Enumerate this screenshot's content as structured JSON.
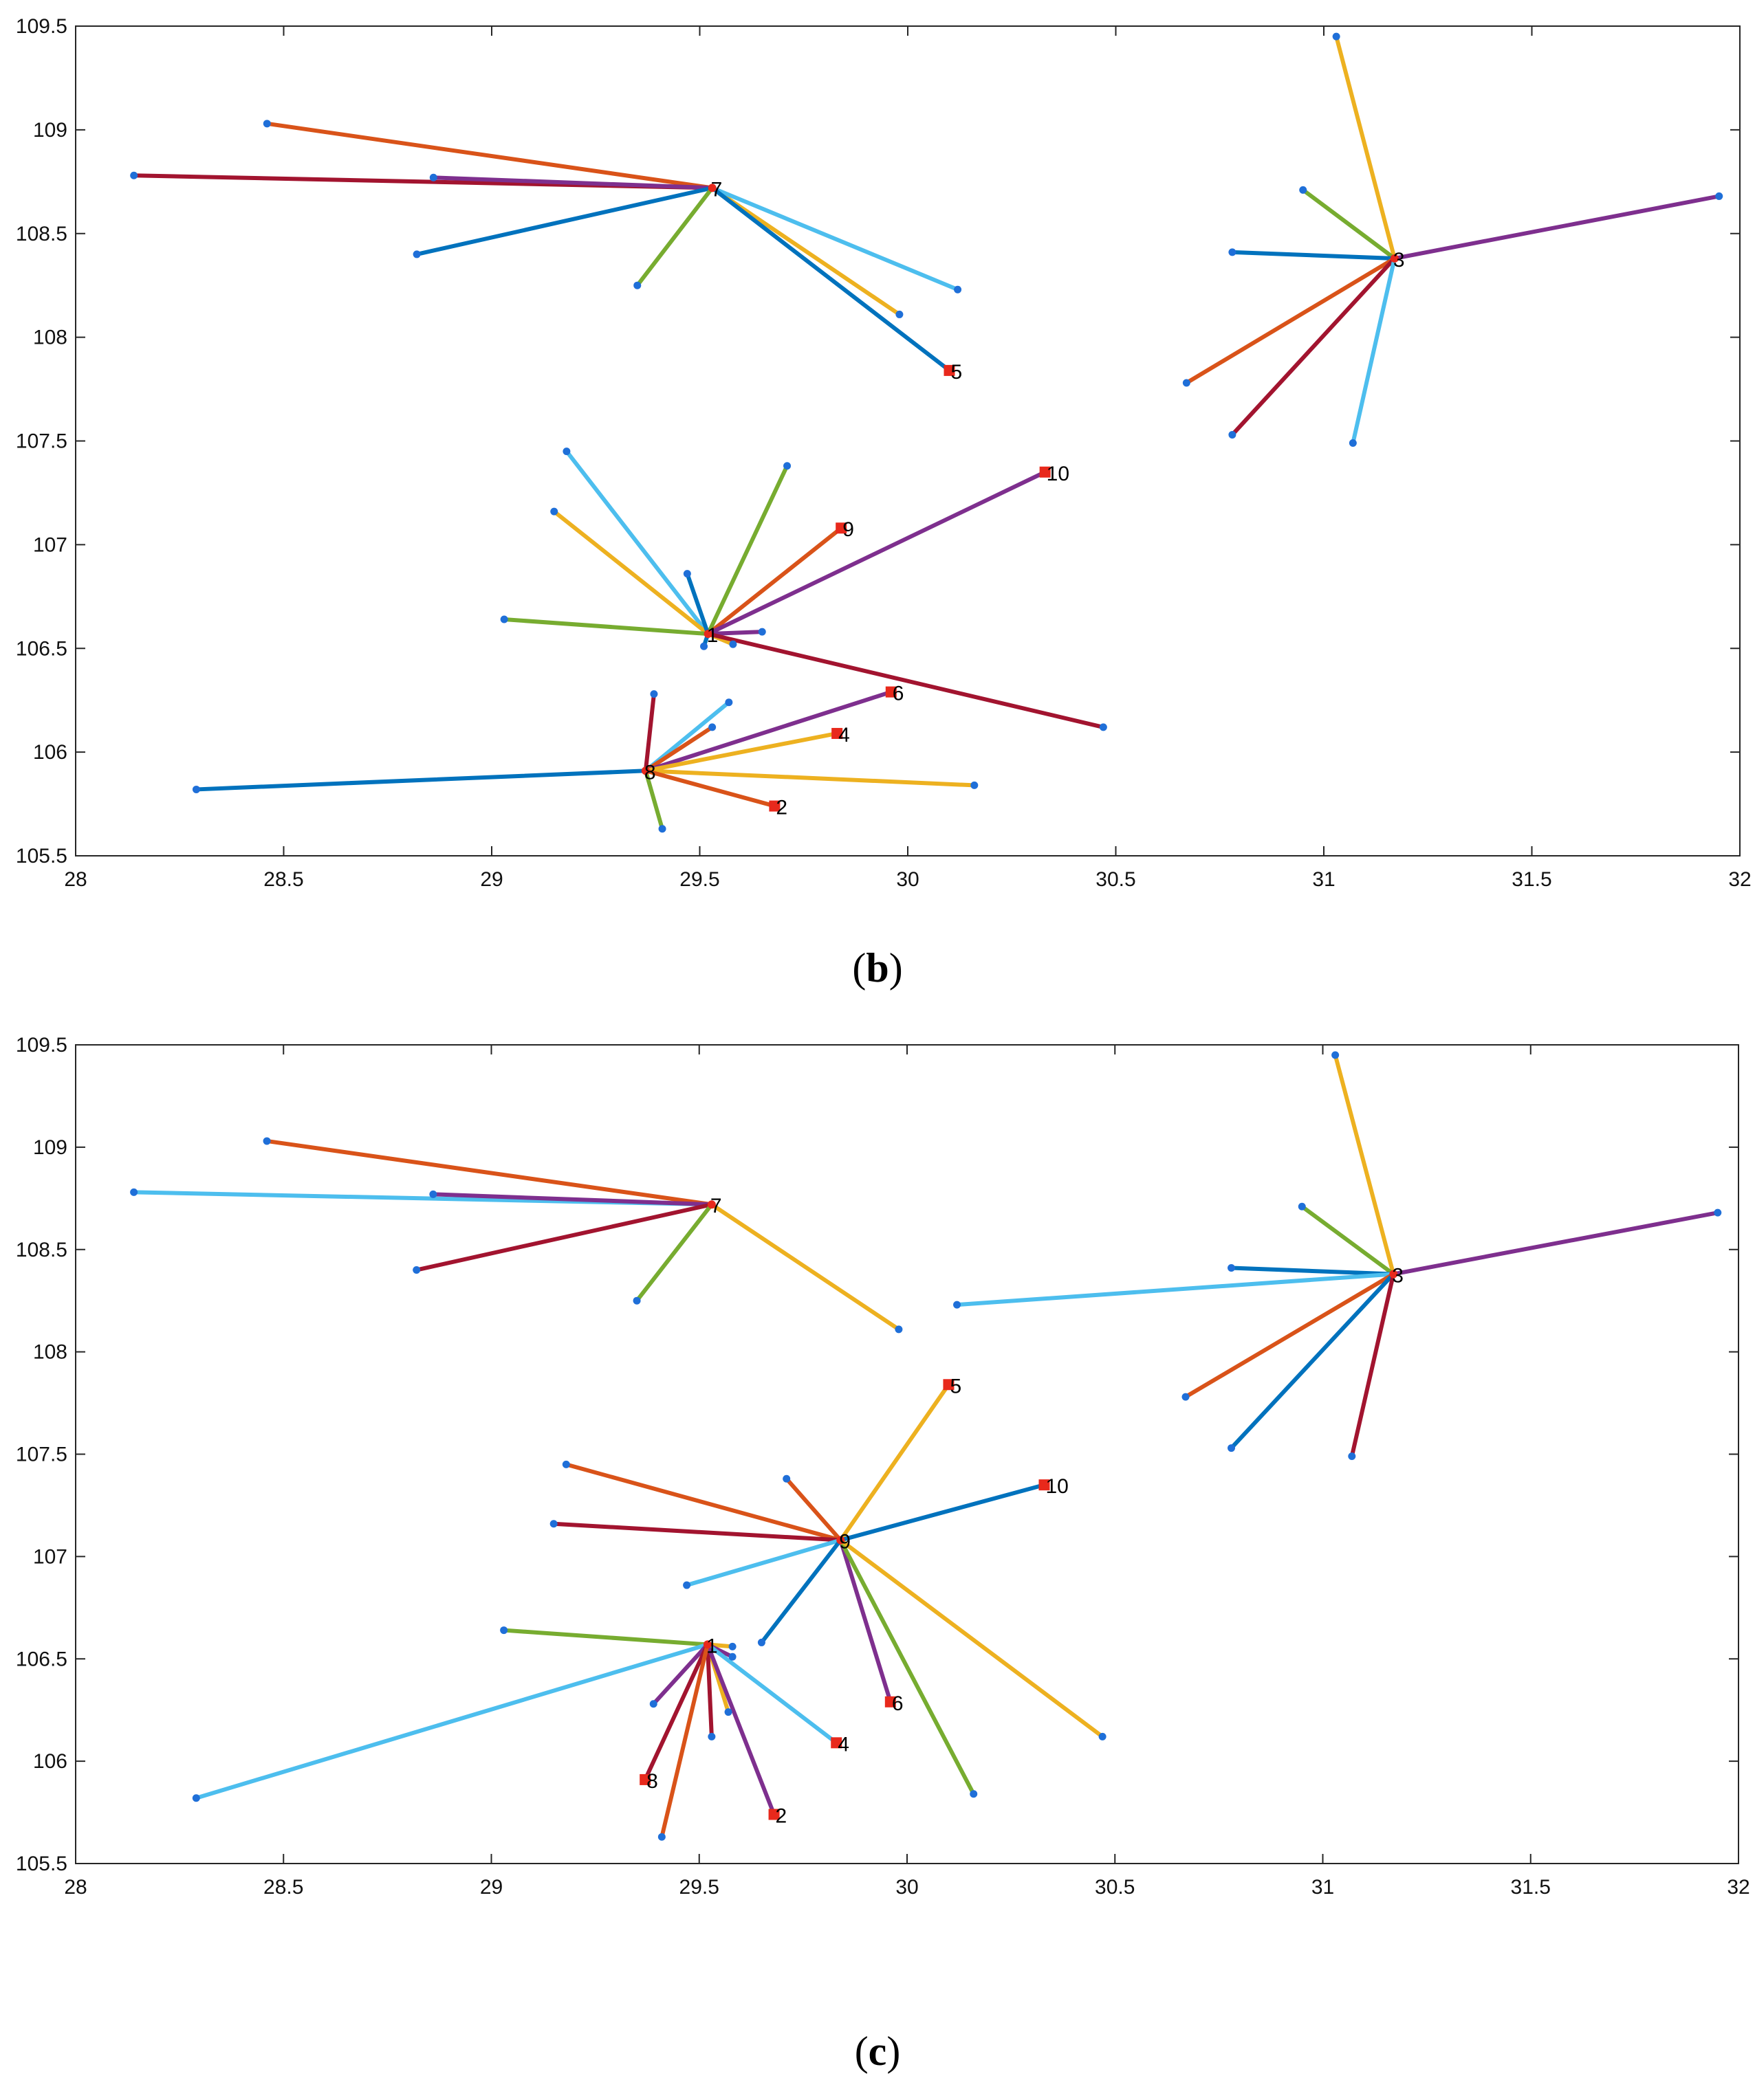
{
  "colors": {
    "blue": "#0072BD",
    "orange": "#D95319",
    "yellow": "#EDB120",
    "purple": "#7E2F8E",
    "green": "#77AC30",
    "cyan": "#4DBEEE",
    "maroon": "#A2142F",
    "marker_red": "#E8291C",
    "dot_blue": "#1F6FD8"
  },
  "chart_data": [
    {
      "type": "scatter",
      "panel_id": "b",
      "caption": {
        "open": "(",
        "letter": "b",
        "close": ")"
      },
      "title": "",
      "xlabel": "",
      "ylabel": "",
      "xlim": [
        28,
        32
      ],
      "ylim": [
        105.5,
        109.5
      ],
      "xticks": [
        "28",
        "28.5",
        "29",
        "29.5",
        "30",
        "30.5",
        "31",
        "31.5",
        "32"
      ],
      "yticks": [
        "105.5",
        "106",
        "106.5",
        "107",
        "107.5",
        "108",
        "108.5",
        "109",
        "109.5"
      ],
      "grid": false,
      "centers": [
        {
          "label": "7",
          "x": 29.53,
          "y": 108.72
        },
        {
          "label": "3",
          "x": 31.17,
          "y": 108.38
        },
        {
          "label": "1",
          "x": 29.52,
          "y": 106.57
        },
        {
          "label": "8",
          "x": 29.37,
          "y": 105.91
        }
      ],
      "facilities": [
        {
          "label": "5",
          "x": 30.1,
          "y": 107.84
        },
        {
          "label": "10",
          "x": 30.33,
          "y": 107.35
        },
        {
          "label": "9",
          "x": 29.84,
          "y": 107.08
        },
        {
          "label": "6",
          "x": 29.96,
          "y": 106.29
        },
        {
          "label": "4",
          "x": 29.83,
          "y": 106.09
        },
        {
          "label": "2",
          "x": 29.68,
          "y": 105.74
        }
      ],
      "links": [
        {
          "center": "7",
          "x": 28.46,
          "y": 109.03,
          "color": "orange"
        },
        {
          "center": "7",
          "x": 28.14,
          "y": 108.78,
          "color": "maroon"
        },
        {
          "center": "7",
          "x": 28.86,
          "y": 108.77,
          "color": "purple"
        },
        {
          "center": "7",
          "x": 28.82,
          "y": 108.4,
          "color": "blue"
        },
        {
          "center": "7",
          "x": 29.35,
          "y": 108.25,
          "color": "green"
        },
        {
          "center": "7",
          "x": 29.98,
          "y": 108.11,
          "color": "yellow"
        },
        {
          "center": "7",
          "x": 30.12,
          "y": 108.23,
          "color": "cyan"
        },
        {
          "center": "7",
          "x": 30.1,
          "y": 107.84,
          "color": "blue"
        },
        {
          "center": "3",
          "x": 31.03,
          "y": 109.45,
          "color": "yellow"
        },
        {
          "center": "3",
          "x": 30.95,
          "y": 108.71,
          "color": "green"
        },
        {
          "center": "3",
          "x": 30.78,
          "y": 108.41,
          "color": "blue"
        },
        {
          "center": "3",
          "x": 31.95,
          "y": 108.68,
          "color": "purple"
        },
        {
          "center": "3",
          "x": 30.67,
          "y": 107.78,
          "color": "orange"
        },
        {
          "center": "3",
          "x": 30.78,
          "y": 107.53,
          "color": "maroon"
        },
        {
          "center": "3",
          "x": 31.07,
          "y": 107.49,
          "color": "cyan"
        },
        {
          "center": "1",
          "x": 29.18,
          "y": 107.45,
          "color": "cyan"
        },
        {
          "center": "1",
          "x": 29.15,
          "y": 107.16,
          "color": "yellow"
        },
        {
          "center": "1",
          "x": 29.71,
          "y": 107.38,
          "color": "green"
        },
        {
          "center": "1",
          "x": 29.84,
          "y": 107.08,
          "color": "orange"
        },
        {
          "center": "1",
          "x": 30.33,
          "y": 107.35,
          "color": "purple"
        },
        {
          "center": "1",
          "x": 29.47,
          "y": 106.86,
          "color": "blue"
        },
        {
          "center": "1",
          "x": 29.03,
          "y": 106.64,
          "color": "green"
        },
        {
          "center": "1",
          "x": 29.65,
          "y": 106.58,
          "color": "purple"
        },
        {
          "center": "1",
          "x": 29.51,
          "y": 106.51,
          "color": "blue"
        },
        {
          "center": "1",
          "x": 29.58,
          "y": 106.52,
          "color": "yellow"
        },
        {
          "center": "1",
          "x": 30.47,
          "y": 106.12,
          "color": "maroon"
        },
        {
          "center": "8",
          "x": 28.29,
          "y": 105.82,
          "color": "blue"
        },
        {
          "center": "8",
          "x": 29.39,
          "y": 106.28,
          "color": "maroon"
        },
        {
          "center": "8",
          "x": 29.57,
          "y": 106.24,
          "color": "cyan"
        },
        {
          "center": "8",
          "x": 29.53,
          "y": 106.12,
          "color": "orange"
        },
        {
          "center": "8",
          "x": 29.96,
          "y": 106.29,
          "color": "purple"
        },
        {
          "center": "8",
          "x": 29.83,
          "y": 106.09,
          "color": "yellow"
        },
        {
          "center": "8",
          "x": 30.16,
          "y": 105.84,
          "color": "yellow"
        },
        {
          "center": "8",
          "x": 29.68,
          "y": 105.74,
          "color": "orange"
        },
        {
          "center": "8",
          "x": 29.41,
          "y": 105.63,
          "color": "green"
        }
      ]
    },
    {
      "type": "scatter",
      "panel_id": "c",
      "caption": {
        "open": "(",
        "letter": "c",
        "close": ")"
      },
      "title": "",
      "xlabel": "",
      "ylabel": "",
      "xlim": [
        28,
        32
      ],
      "ylim": [
        105.5,
        109.5
      ],
      "xticks": [
        "28",
        "28.5",
        "29",
        "29.5",
        "30",
        "30.5",
        "31",
        "31.5",
        "32"
      ],
      "yticks": [
        "105.5",
        "106",
        "106.5",
        "107",
        "107.5",
        "108",
        "108.5",
        "109",
        "109.5"
      ],
      "grid": false,
      "centers": [
        {
          "label": "7",
          "x": 29.53,
          "y": 108.72
        },
        {
          "label": "3",
          "x": 31.17,
          "y": 108.38
        },
        {
          "label": "9",
          "x": 29.84,
          "y": 107.08
        },
        {
          "label": "1",
          "x": 29.52,
          "y": 106.57
        }
      ],
      "facilities": [
        {
          "label": "5",
          "x": 30.1,
          "y": 107.84
        },
        {
          "label": "10",
          "x": 30.33,
          "y": 107.35
        },
        {
          "label": "6",
          "x": 29.96,
          "y": 106.29
        },
        {
          "label": "4",
          "x": 29.83,
          "y": 106.09
        },
        {
          "label": "8",
          "x": 29.37,
          "y": 105.91
        },
        {
          "label": "2",
          "x": 29.68,
          "y": 105.74
        }
      ],
      "links": [
        {
          "center": "7",
          "x": 28.46,
          "y": 109.03,
          "color": "orange"
        },
        {
          "center": "7",
          "x": 28.14,
          "y": 108.78,
          "color": "cyan"
        },
        {
          "center": "7",
          "x": 28.86,
          "y": 108.77,
          "color": "purple"
        },
        {
          "center": "7",
          "x": 28.82,
          "y": 108.4,
          "color": "maroon"
        },
        {
          "center": "7",
          "x": 29.35,
          "y": 108.25,
          "color": "green"
        },
        {
          "center": "7",
          "x": 29.98,
          "y": 108.11,
          "color": "yellow"
        },
        {
          "center": "3",
          "x": 31.03,
          "y": 109.45,
          "color": "yellow"
        },
        {
          "center": "3",
          "x": 30.95,
          "y": 108.71,
          "color": "green"
        },
        {
          "center": "3",
          "x": 30.78,
          "y": 108.41,
          "color": "blue"
        },
        {
          "center": "3",
          "x": 31.95,
          "y": 108.68,
          "color": "purple"
        },
        {
          "center": "3",
          "x": 30.12,
          "y": 108.23,
          "color": "cyan"
        },
        {
          "center": "3",
          "x": 30.67,
          "y": 107.78,
          "color": "orange"
        },
        {
          "center": "3",
          "x": 30.78,
          "y": 107.53,
          "color": "blue"
        },
        {
          "center": "3",
          "x": 31.07,
          "y": 107.49,
          "color": "maroon"
        },
        {
          "center": "9",
          "x": 30.1,
          "y": 107.84,
          "color": "yellow"
        },
        {
          "center": "9",
          "x": 30.33,
          "y": 107.35,
          "color": "blue"
        },
        {
          "center": "9",
          "x": 29.18,
          "y": 107.45,
          "color": "orange"
        },
        {
          "center": "9",
          "x": 29.71,
          "y": 107.38,
          "color": "orange"
        },
        {
          "center": "9",
          "x": 29.15,
          "y": 107.16,
          "color": "maroon"
        },
        {
          "center": "9",
          "x": 29.47,
          "y": 106.86,
          "color": "cyan"
        },
        {
          "center": "9",
          "x": 29.65,
          "y": 106.58,
          "color": "blue"
        },
        {
          "center": "9",
          "x": 29.96,
          "y": 106.29,
          "color": "purple"
        },
        {
          "center": "9",
          "x": 30.16,
          "y": 105.84,
          "color": "green"
        },
        {
          "center": "9",
          "x": 30.47,
          "y": 106.12,
          "color": "yellow"
        },
        {
          "center": "1",
          "x": 29.03,
          "y": 106.64,
          "color": "green"
        },
        {
          "center": "1",
          "x": 28.29,
          "y": 105.82,
          "color": "cyan"
        },
        {
          "center": "1",
          "x": 29.58,
          "y": 106.56,
          "color": "yellow"
        },
        {
          "center": "1",
          "x": 29.58,
          "y": 106.51,
          "color": "purple"
        },
        {
          "center": "1",
          "x": 29.39,
          "y": 106.28,
          "color": "purple"
        },
        {
          "center": "1",
          "x": 29.57,
          "y": 106.24,
          "color": "yellow"
        },
        {
          "center": "1",
          "x": 29.53,
          "y": 106.12,
          "color": "maroon"
        },
        {
          "center": "1",
          "x": 29.83,
          "y": 106.09,
          "color": "cyan"
        },
        {
          "center": "1",
          "x": 29.37,
          "y": 105.91,
          "color": "maroon"
        },
        {
          "center": "1",
          "x": 29.68,
          "y": 105.74,
          "color": "purple"
        },
        {
          "center": "1",
          "x": 29.41,
          "y": 105.63,
          "color": "orange"
        }
      ]
    }
  ]
}
